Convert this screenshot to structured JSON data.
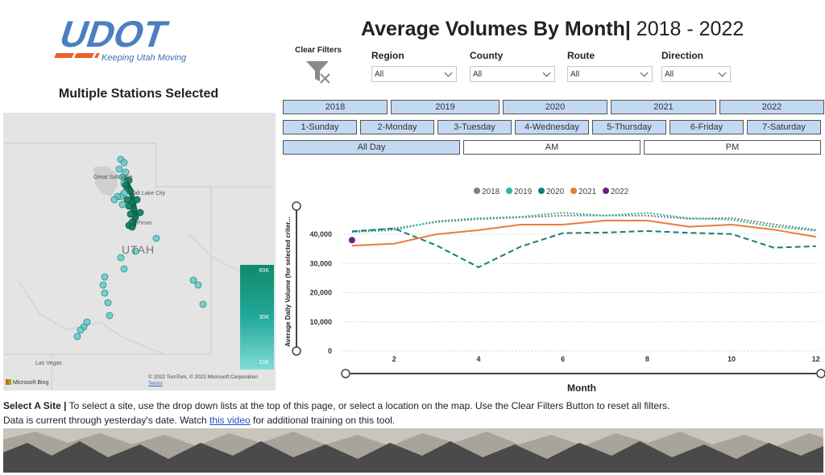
{
  "logo": {
    "text": "UDOT",
    "tagline": "Keeping Utah Moving"
  },
  "stations_title": "Multiple Stations Selected",
  "map": {
    "state_label": "UTAH",
    "city_labels": [
      "Great Salt Lake",
      "Salt Lake City",
      "Provo",
      "Las Vegas"
    ],
    "legend": [
      "60K",
      "30K",
      "10K"
    ],
    "bing": "Microsoft Bing",
    "attribution": "© 2022 TomTom, © 2022 Microsoft Corporation",
    "terms": "Terms"
  },
  "title": {
    "main": "Average Volumes By Month|",
    "years": " 2018 - 2022"
  },
  "clear_filters": "Clear Filters",
  "filters": [
    {
      "label": "Region",
      "value": "All"
    },
    {
      "label": "County",
      "value": "All"
    },
    {
      "label": "Route",
      "value": "All"
    },
    {
      "label": "Direction",
      "value": "All"
    }
  ],
  "year_buttons": [
    "2018",
    "2019",
    "2020",
    "2021",
    "2022"
  ],
  "day_buttons": [
    "1-Sunday",
    "2-Monday",
    "3-Tuesday",
    "4-Wednesday",
    "5-Thursday",
    "6-Friday",
    "7-Saturday"
  ],
  "time_buttons": [
    "All Day",
    "AM",
    "PM"
  ],
  "chart_data": {
    "type": "line",
    "x": [
      1,
      2,
      3,
      4,
      5,
      6,
      7,
      8,
      9,
      10,
      11,
      12
    ],
    "xticks": [
      2,
      4,
      6,
      8,
      10,
      12
    ],
    "yticks": [
      "0",
      "10,000",
      "20,000",
      "30,000",
      "40,000"
    ],
    "xlabel": "Month",
    "ylabel": "Average Daily Volume (for selected criter...",
    "ylim": [
      0,
      48000
    ],
    "xlim": [
      0.6,
      12.1
    ],
    "legend_position": "top",
    "series": [
      {
        "name": "2018",
        "color": "#808080",
        "style": "dotted",
        "values": [
          41000,
          42000,
          44200,
          45200,
          45800,
          46400,
          46400,
          46400,
          45300,
          45600,
          43400,
          41500
        ]
      },
      {
        "name": "2019",
        "color": "#2bb5a0",
        "style": "dotted",
        "values": [
          40700,
          41500,
          44500,
          45500,
          46000,
          47400,
          46400,
          47300,
          45500,
          45000,
          42600,
          41200
        ]
      },
      {
        "name": "2020",
        "color": "#138078",
        "style": "dashed",
        "values": [
          41000,
          42000,
          36200,
          28700,
          35800,
          40400,
          40600,
          41100,
          40500,
          40100,
          35400,
          35900
        ]
      },
      {
        "name": "2021",
        "color": "#ec7b3f",
        "style": "solid",
        "values": [
          36100,
          36800,
          40000,
          41400,
          43300,
          43300,
          44700,
          44700,
          42600,
          43300,
          41600,
          39100
        ]
      },
      {
        "name": "2022",
        "color": "#701f88",
        "style": "point",
        "values": [
          38000,
          null,
          null,
          null,
          null,
          null,
          null,
          null,
          null,
          null,
          null,
          null
        ]
      }
    ]
  },
  "select_site": {
    "bold": "Select A Site |",
    "text": " To select a site, use the drop down lists at the top of this page, or select a location on the map. Use the Clear Filters Button to reset all filters."
  },
  "data_current": {
    "before": "Data is current through yesterday's date. Watch ",
    "link": "this video",
    "after": " for additional training on this tool."
  }
}
